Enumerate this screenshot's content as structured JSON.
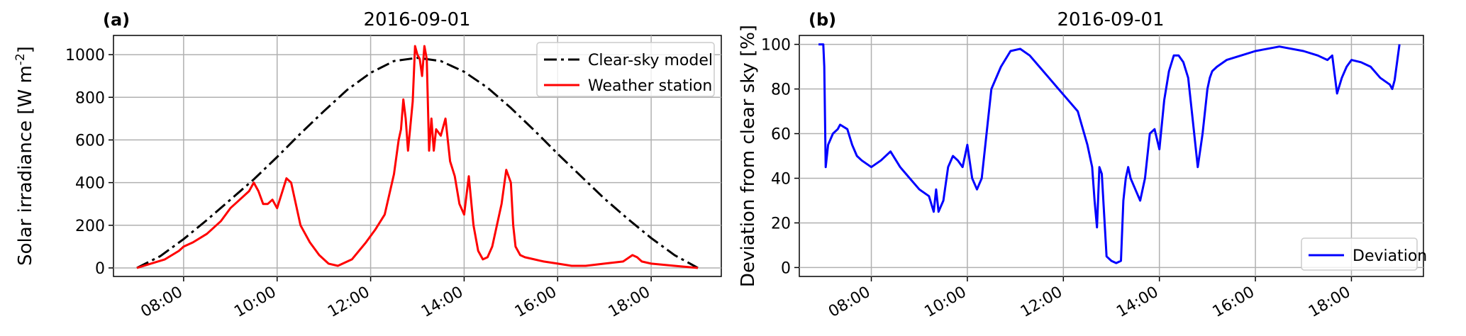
{
  "chart_data": [
    {
      "panel": "(a)",
      "type": "line",
      "title": "2016-09-01",
      "xlabel": "",
      "ylabel": "Solar irradiance [W m⁻²]",
      "xlim": [
        6.5,
        19.5
      ],
      "ylim": [
        -40,
        1090
      ],
      "x_ticks": [
        8,
        10,
        12,
        14,
        16,
        18
      ],
      "x_tick_labels": [
        "08:00",
        "10:00",
        "12:00",
        "14:00",
        "16:00",
        "18:00"
      ],
      "y_ticks": [
        0,
        200,
        400,
        600,
        800,
        1000
      ],
      "y_tick_labels": [
        "0",
        "200",
        "400",
        "600",
        "800",
        "1000"
      ],
      "grid": true,
      "legend": {
        "position": "top-right",
        "entries": [
          "Clear-sky model",
          "Weather station"
        ]
      },
      "series": [
        {
          "name": "Clear-sky model",
          "color": "#000000",
          "style": "dashdot",
          "x": [
            7.0,
            7.5,
            8.0,
            8.5,
            9.0,
            9.5,
            10.0,
            10.5,
            11.0,
            11.5,
            12.0,
            12.5,
            13.0,
            13.5,
            14.0,
            14.5,
            15.0,
            15.5,
            16.0,
            16.5,
            17.0,
            17.5,
            18.0,
            18.5,
            19.0
          ],
          "y": [
            0,
            55,
            135,
            225,
            320,
            415,
            520,
            630,
            735,
            835,
            915,
            970,
            985,
            970,
            920,
            845,
            750,
            645,
            535,
            430,
            325,
            230,
            140,
            60,
            0
          ]
        },
        {
          "name": "Weather station",
          "color": "#ff0000",
          "style": "solid",
          "x": [
            7.0,
            7.3,
            7.6,
            7.9,
            8.0,
            8.2,
            8.5,
            8.8,
            9.0,
            9.2,
            9.4,
            9.5,
            9.6,
            9.7,
            9.8,
            9.9,
            10.0,
            10.1,
            10.2,
            10.3,
            10.4,
            10.5,
            10.7,
            10.9,
            11.1,
            11.3,
            11.6,
            11.9,
            12.1,
            12.3,
            12.5,
            12.6,
            12.65,
            12.7,
            12.75,
            12.8,
            12.9,
            12.95,
            13.0,
            13.05,
            13.1,
            13.15,
            13.2,
            13.25,
            13.3,
            13.35,
            13.4,
            13.5,
            13.6,
            13.7,
            13.8,
            13.9,
            14.0,
            14.1,
            14.2,
            14.3,
            14.4,
            14.5,
            14.6,
            14.7,
            14.8,
            14.9,
            15.0,
            15.05,
            15.1,
            15.2,
            15.3,
            15.5,
            15.7,
            16.0,
            16.3,
            16.6,
            17.0,
            17.4,
            17.6,
            17.7,
            17.8,
            18.0,
            18.5,
            19.0
          ],
          "y": [
            0,
            20,
            40,
            80,
            100,
            120,
            160,
            220,
            280,
            320,
            360,
            400,
            360,
            300,
            300,
            320,
            280,
            350,
            420,
            400,
            300,
            200,
            120,
            60,
            20,
            10,
            40,
            120,
            180,
            250,
            440,
            600,
            650,
            790,
            700,
            550,
            780,
            1040,
            1000,
            980,
            900,
            1040,
            980,
            550,
            700,
            550,
            650,
            620,
            700,
            500,
            430,
            300,
            250,
            430,
            200,
            80,
            40,
            50,
            100,
            200,
            300,
            460,
            400,
            200,
            100,
            60,
            50,
            40,
            30,
            20,
            10,
            10,
            20,
            30,
            60,
            50,
            30,
            20,
            10,
            0
          ]
        }
      ]
    },
    {
      "panel": "(b)",
      "type": "line",
      "title": "2016-09-01",
      "xlabel": "",
      "ylabel": "Deviation from clear sky [%]",
      "xlim": [
        6.5,
        19.5
      ],
      "ylim": [
        -4,
        104
      ],
      "x_ticks": [
        8,
        10,
        12,
        14,
        16,
        18
      ],
      "x_tick_labels": [
        "08:00",
        "10:00",
        "12:00",
        "14:00",
        "16:00",
        "18:00"
      ],
      "y_ticks": [
        0,
        20,
        40,
        60,
        80,
        100
      ],
      "y_tick_labels": [
        "0",
        "20",
        "40",
        "60",
        "80",
        "100"
      ],
      "grid": true,
      "legend": {
        "position": "bottom-right",
        "entries": [
          "Deviation"
        ]
      },
      "series": [
        {
          "name": "Deviation",
          "color": "#0000ff",
          "style": "solid",
          "x": [
            6.9,
            7.0,
            7.02,
            7.05,
            7.1,
            7.2,
            7.3,
            7.35,
            7.5,
            7.6,
            7.7,
            7.8,
            8.0,
            8.2,
            8.4,
            8.6,
            8.8,
            9.0,
            9.2,
            9.3,
            9.35,
            9.4,
            9.5,
            9.6,
            9.7,
            9.8,
            9.9,
            10.0,
            10.1,
            10.2,
            10.3,
            10.4,
            10.5,
            10.7,
            10.9,
            11.1,
            11.3,
            11.5,
            11.7,
            11.9,
            12.1,
            12.3,
            12.5,
            12.6,
            12.65,
            12.7,
            12.75,
            12.8,
            12.9,
            13.0,
            13.1,
            13.2,
            13.25,
            13.3,
            13.35,
            13.4,
            13.5,
            13.6,
            13.7,
            13.8,
            13.9,
            14.0,
            14.1,
            14.2,
            14.3,
            14.4,
            14.5,
            14.6,
            14.7,
            14.8,
            14.9,
            15.0,
            15.05,
            15.1,
            15.2,
            15.4,
            15.7,
            16.0,
            16.5,
            17.0,
            17.3,
            17.5,
            17.6,
            17.7,
            17.8,
            17.9,
            18.0,
            18.2,
            18.4,
            18.6,
            18.8,
            18.85,
            18.9,
            19.0
          ],
          "y": [
            100,
            100,
            90,
            45,
            55,
            60,
            62,
            64,
            62,
            55,
            50,
            48,
            45,
            48,
            52,
            45,
            40,
            35,
            32,
            25,
            35,
            25,
            30,
            45,
            50,
            48,
            45,
            55,
            40,
            35,
            40,
            60,
            80,
            90,
            97,
            98,
            95,
            90,
            85,
            80,
            75,
            70,
            55,
            45,
            30,
            18,
            45,
            42,
            5,
            3,
            2,
            3,
            30,
            40,
            45,
            40,
            35,
            30,
            40,
            60,
            62,
            53,
            75,
            88,
            95,
            95,
            92,
            85,
            65,
            45,
            60,
            80,
            85,
            88,
            90,
            93,
            95,
            97,
            99,
            97,
            95,
            93,
            95,
            78,
            85,
            90,
            93,
            92,
            90,
            85,
            82,
            80,
            84,
            100
          ]
        }
      ]
    }
  ]
}
